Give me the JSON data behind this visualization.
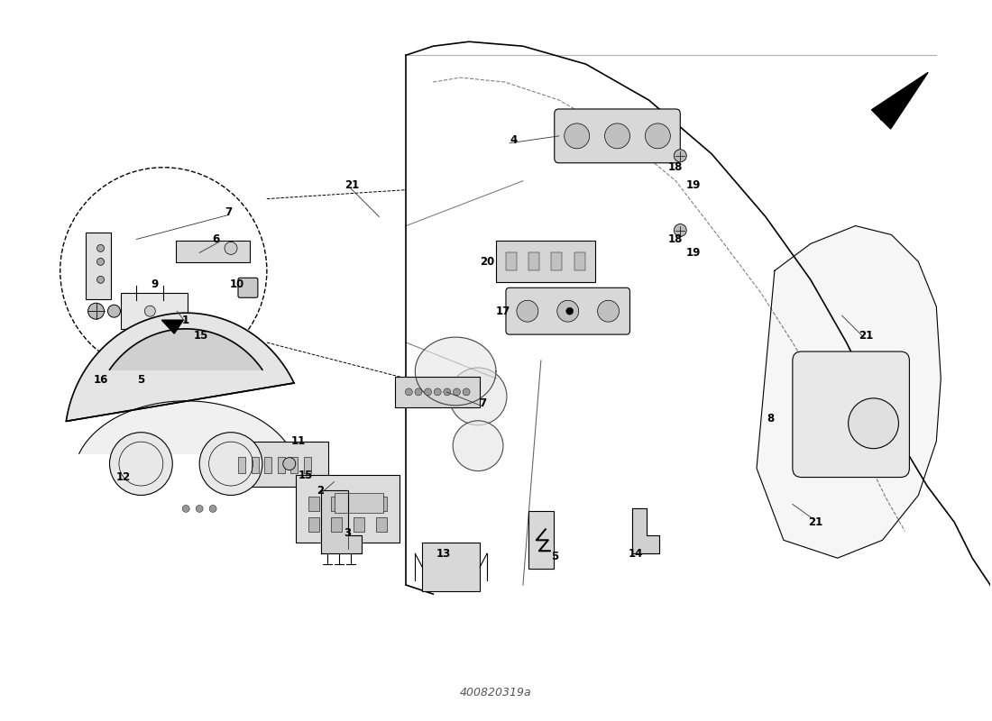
{
  "title": "",
  "part_number": "400820319a",
  "bg_color": "#ffffff",
  "line_color": "#000000",
  "label_color": "#000000",
  "fig_width": 11.0,
  "fig_height": 8.0,
  "labels_to_draw": [
    [
      "1",
      2.05,
      4.45
    ],
    [
      "2",
      3.55,
      2.55
    ],
    [
      "3",
      3.85,
      2.08
    ],
    [
      "4",
      5.7,
      6.45
    ],
    [
      "5",
      1.55,
      3.78
    ],
    [
      "5",
      6.15,
      1.82
    ],
    [
      "6",
      2.38,
      5.35
    ],
    [
      "7",
      2.52,
      5.65
    ],
    [
      "7",
      5.35,
      3.52
    ],
    [
      "8",
      8.55,
      3.35
    ],
    [
      "9",
      1.7,
      4.85
    ],
    [
      "10",
      2.62,
      4.85
    ],
    [
      "11",
      3.3,
      3.1
    ],
    [
      "12",
      1.35,
      2.7
    ],
    [
      "13",
      4.92,
      1.85
    ],
    [
      "14",
      7.05,
      1.85
    ],
    [
      "15",
      2.22,
      4.28
    ],
    [
      "15",
      3.38,
      2.72
    ],
    [
      "16",
      1.1,
      3.78
    ],
    [
      "17",
      5.58,
      4.55
    ],
    [
      "18",
      7.5,
      6.15
    ],
    [
      "18",
      7.5,
      5.35
    ],
    [
      "19",
      7.7,
      5.95
    ],
    [
      "19",
      7.7,
      5.2
    ],
    [
      "20",
      5.4,
      5.1
    ],
    [
      "21",
      3.9,
      5.95
    ],
    [
      "21",
      9.62,
      4.28
    ],
    [
      "21",
      9.05,
      2.2
    ]
  ],
  "leader_lines": [
    [
      2.05,
      4.42,
      1.95,
      4.55
    ],
    [
      3.55,
      2.52,
      3.7,
      2.65
    ],
    [
      3.85,
      2.11,
      3.85,
      1.9
    ],
    [
      5.65,
      6.42,
      6.2,
      6.5
    ],
    [
      2.42,
      5.32,
      2.2,
      5.2
    ],
    [
      2.52,
      5.62,
      1.5,
      5.35
    ],
    [
      5.35,
      3.49,
      4.95,
      3.65
    ],
    [
      9.6,
      4.25,
      9.35,
      4.5
    ],
    [
      9.05,
      2.22,
      8.8,
      2.4
    ],
    [
      3.88,
      5.92,
      4.2,
      5.6
    ]
  ]
}
